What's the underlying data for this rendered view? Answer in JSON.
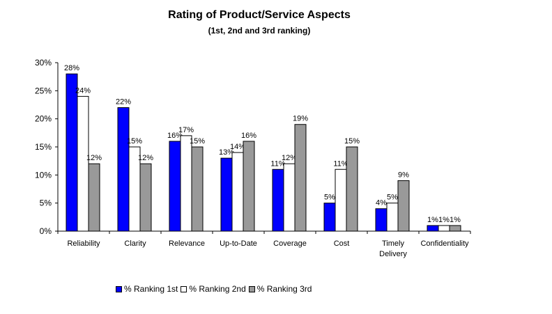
{
  "chart_data": {
    "type": "bar",
    "title": "Rating of Product/Service Aspects",
    "subtitle": "(1st, 2nd and 3rd ranking)",
    "xlabel": "",
    "ylabel": "",
    "ylim": [
      0,
      30
    ],
    "yticks": [
      "0%",
      "5%",
      "10%",
      "15%",
      "20%",
      "25%",
      "30%"
    ],
    "ytick_values": [
      0,
      5,
      10,
      15,
      20,
      25,
      30
    ],
    "grid": false,
    "legend_position": "bottom",
    "categories": [
      [
        "Reliability"
      ],
      [
        "Clarity"
      ],
      [
        "Relevance"
      ],
      [
        "Up-to-Date"
      ],
      [
        "Coverage"
      ],
      [
        "Cost"
      ],
      [
        "Timely",
        "Delivery"
      ],
      [
        "Confidentiality"
      ]
    ],
    "series": [
      {
        "name": "% Ranking 1st",
        "color": "#0000ff",
        "values": [
          28,
          22,
          16,
          13,
          11,
          5,
          4,
          1
        ]
      },
      {
        "name": "% Ranking 2nd",
        "color": "#ffffff",
        "values": [
          24,
          15,
          17,
          14,
          12,
          11,
          5,
          1
        ]
      },
      {
        "name": "% Ranking 3rd",
        "color": "#999999",
        "values": [
          12,
          12,
          15,
          16,
          19,
          15,
          9,
          1
        ]
      }
    ],
    "value_suffix": "%"
  }
}
